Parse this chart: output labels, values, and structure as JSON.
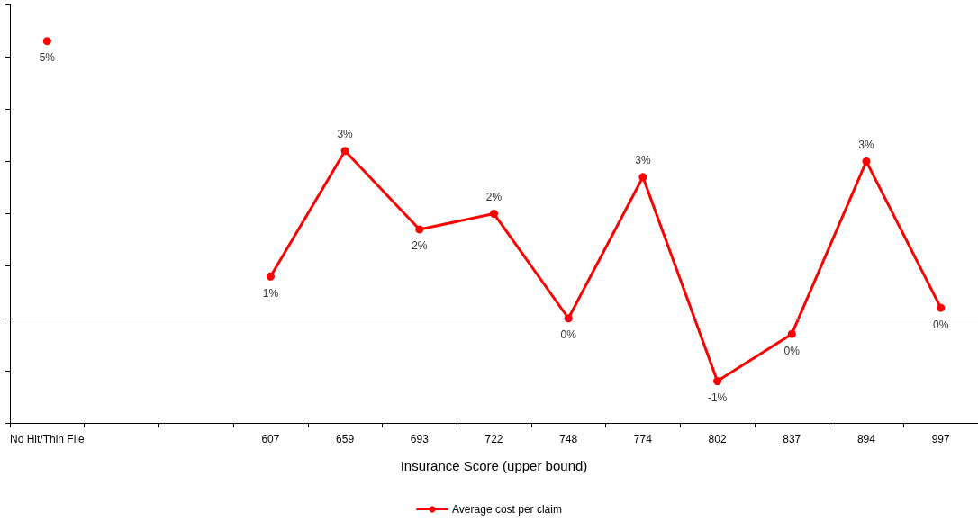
{
  "chart_data": {
    "type": "line",
    "xlabel": "Insurance Score (upper bound)",
    "categories": [
      "No Hit/Thin File",
      null,
      null,
      "607",
      "659",
      "693",
      "722",
      "748",
      "774",
      "802",
      "837",
      "894",
      "997"
    ],
    "series": [
      {
        "name": "Average cost per claim",
        "color": "#ff0000",
        "values": [
          5.3,
          null,
          null,
          0.8,
          3.2,
          1.7,
          2.0,
          0.0,
          2.7,
          -1.2,
          -0.3,
          3.0,
          0.2
        ],
        "value_labels": [
          "5%",
          null,
          null,
          "1%",
          "3%",
          "2%",
          "2%",
          "0%",
          "3%",
          "-1%",
          "0%",
          "3%",
          "0%"
        ]
      }
    ],
    "ylim": [
      -2,
      6
    ],
    "yticks": [
      {
        "value": -2,
        "label": null
      },
      {
        "value": -1,
        "label": null
      },
      {
        "value": 0,
        "label": null
      },
      {
        "value": 1,
        "label": null
      },
      {
        "value": 2,
        "label": null
      },
      {
        "value": 3,
        "label": null
      },
      {
        "value": 4,
        "label": null
      },
      {
        "value": 5,
        "label": null
      },
      {
        "value": 6,
        "label": null
      }
    ],
    "ref_lines": [
      {
        "axis": "y",
        "value": 0,
        "color": "#000000"
      }
    ],
    "marker": "circle",
    "line_style": "solid",
    "grid": false,
    "legend": "bottom"
  }
}
